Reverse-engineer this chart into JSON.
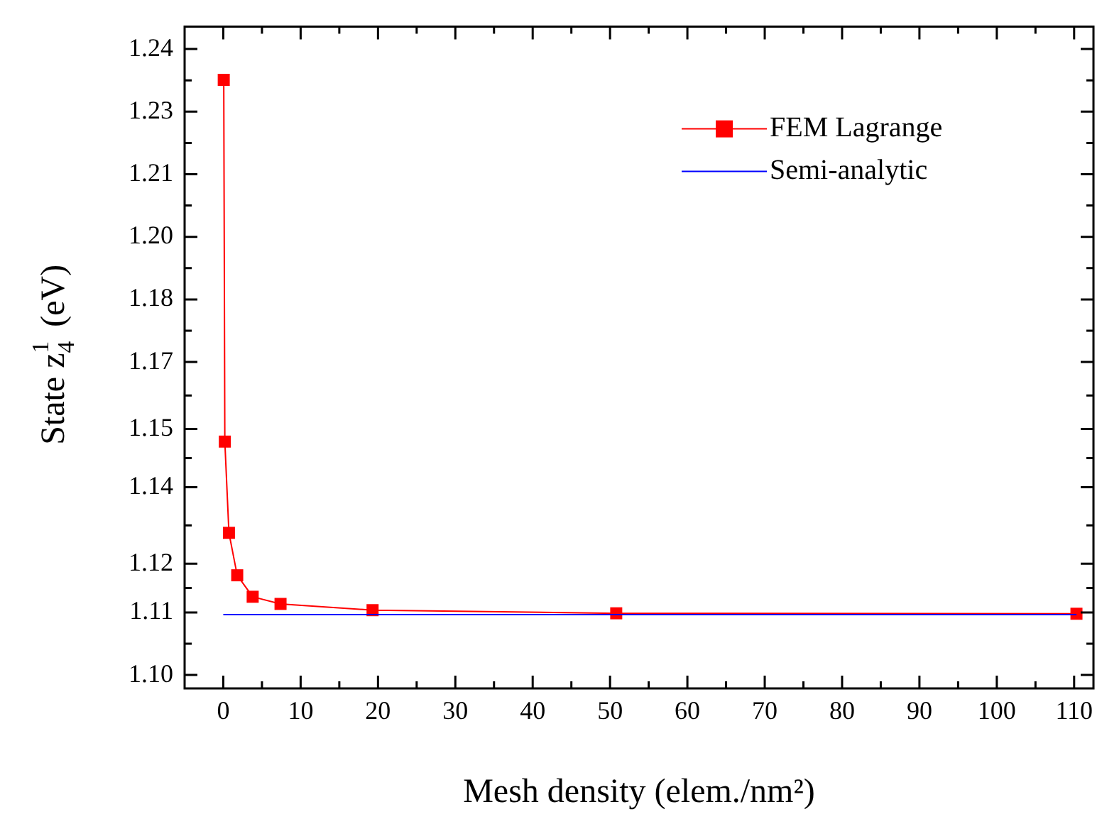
{
  "chart_data": {
    "type": "line",
    "xlabel": "Mesh density (elem./nm²)",
    "ylabel": "State z$^{1}$$_{4}$ (eV)",
    "xlim": [
      -5,
      112.5
    ],
    "xticks": [
      0,
      10,
      20,
      30,
      40,
      50,
      60,
      70,
      80,
      90,
      100,
      110
    ],
    "ylim": [
      1.097,
      1.245
    ],
    "yticks": [
      {
        "value": 1.1,
        "label": "1.10"
      },
      {
        "value": 1.114,
        "label": "1.11"
      },
      {
        "value": 1.1249,
        "label": "1.12"
      },
      {
        "value": 1.142,
        "label": "1.14"
      },
      {
        "value": 1.155,
        "label": "1.15"
      },
      {
        "value": 1.17,
        "label": "1.17"
      },
      {
        "value": 1.184,
        "label": "1.18"
      },
      {
        "value": 1.198,
        "label": "1.20"
      },
      {
        "value": 1.212,
        "label": "1.21"
      },
      {
        "value": 1.226,
        "label": "1.23"
      },
      {
        "value": 1.24,
        "label": "1.24"
      }
    ],
    "grid": false,
    "legend": "top right",
    "series": [
      {
        "name": "FEM Lagrange",
        "color": "#ff0000",
        "marker": "square",
        "x": [
          0.06,
          0.2,
          0.73,
          1.8,
          3.8,
          7.4,
          19.3,
          50.8,
          110.3
        ],
        "values": [
          1.2331,
          1.1522,
          1.1318,
          1.1223,
          1.1175,
          1.1159,
          1.1145,
          1.1138,
          1.1137
        ]
      },
      {
        "name": "Semi-analytic",
        "color": "#0000ff",
        "marker": "none",
        "x": [
          0,
          110.3
        ],
        "values": [
          1.1135,
          1.1135
        ]
      }
    ]
  }
}
